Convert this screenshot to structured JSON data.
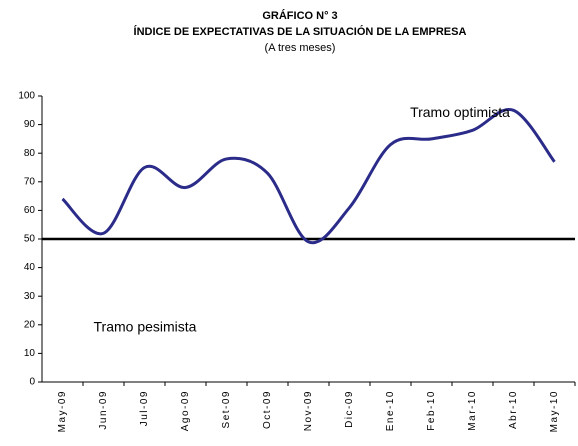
{
  "chart_data": {
    "type": "line",
    "title": "GRÁFICO N° 3",
    "subtitle": "ÍNDICE DE EXPECTATIVAS DE LA SITUACIÓN DE LA EMPRESA",
    "note": "(A tres meses)",
    "categories": [
      "May-09",
      "Jun-09",
      "Jul-09",
      "Ago-09",
      "Set-09",
      "Oct-09",
      "Nov-09",
      "Dic-09",
      "Ene-10",
      "Feb-10",
      "Mar-10",
      "Abr-10",
      "May-10"
    ],
    "values": [
      64,
      52,
      75,
      68,
      78,
      73,
      49,
      61,
      83,
      85,
      88,
      95,
      77
    ],
    "color": "#2b2b8a",
    "ylim": [
      0,
      100
    ],
    "yticks": [
      0,
      10,
      20,
      30,
      40,
      50,
      60,
      70,
      80,
      90,
      100
    ],
    "reference_line": 50,
    "annotations": [
      {
        "text": "Tramo optimista",
        "value": 95
      },
      {
        "text": "Tramo pesimista",
        "value": 20
      }
    ]
  }
}
